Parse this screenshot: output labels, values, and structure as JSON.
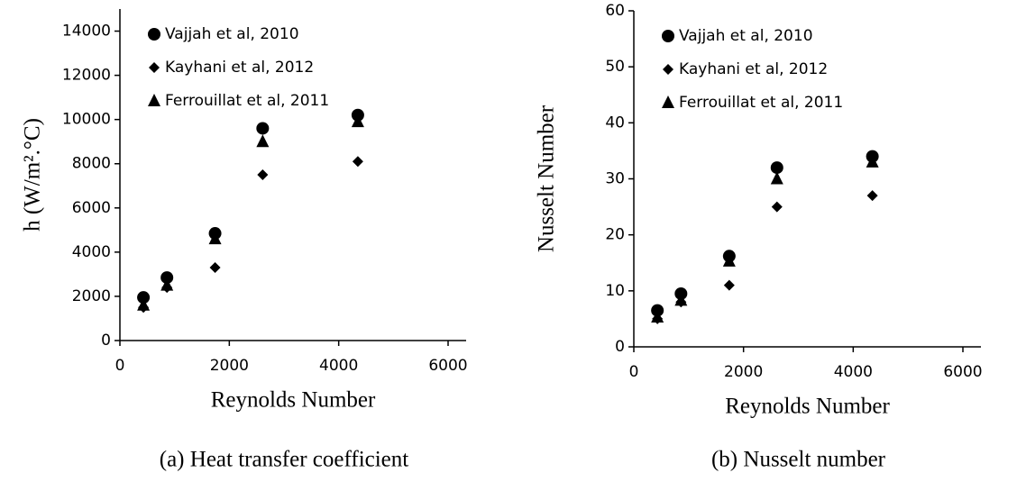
{
  "chart_data": [
    {
      "type": "scatter",
      "caption": "(a) Heat transfer coefficient",
      "x_label": "Reynolds Number",
      "y_label": "h (W/m².°C)",
      "xlim": [
        0,
        6000
      ],
      "xticks": [
        0,
        2000,
        4000,
        6000
      ],
      "ylim": [
        0,
        15000
      ],
      "yticks": [
        0,
        2000,
        4000,
        6000,
        8000,
        10000,
        12000,
        14000
      ],
      "legend": "upper left",
      "series": [
        {
          "name": "Vajjah et al, 2010",
          "marker": "circle",
          "color": "#000000",
          "x": [
            430,
            860,
            1740,
            2610,
            4350
          ],
          "values": [
            1950,
            2850,
            4850,
            9600,
            10200
          ]
        },
        {
          "name": "Kayhani et al, 2012",
          "marker": "diamond",
          "color": "#000000",
          "x": [
            430,
            860,
            1740,
            2610,
            4350
          ],
          "values": [
            1500,
            2400,
            3300,
            7500,
            8100
          ]
        },
        {
          "name": "Ferrouillat et al, 2011",
          "marker": "triangle",
          "color": "#000000",
          "x": [
            430,
            860,
            1740,
            2610,
            4350
          ],
          "values": [
            1600,
            2500,
            4600,
            9000,
            9900
          ]
        }
      ]
    },
    {
      "type": "scatter",
      "caption": "(b) Nusselt number",
      "x_label": "Reynolds Number",
      "y_label": "Nusselt Number",
      "xlim": [
        0,
        6000
      ],
      "xticks": [
        0,
        2000,
        4000,
        6000
      ],
      "ylim": [
        0,
        60
      ],
      "yticks": [
        0,
        10,
        20,
        30,
        40,
        50,
        60
      ],
      "legend": "upper left",
      "series": [
        {
          "name": "Vajjah et al, 2010",
          "marker": "circle",
          "color": "#000000",
          "x": [
            430,
            860,
            1740,
            2610,
            4350
          ],
          "values": [
            6.5,
            9.5,
            16.2,
            32,
            34
          ]
        },
        {
          "name": "Kayhani et al, 2012",
          "marker": "diamond",
          "color": "#000000",
          "x": [
            430,
            860,
            1740,
            2610,
            4350
          ],
          "values": [
            5,
            8,
            11,
            25,
            27
          ]
        },
        {
          "name": "Ferrouillat et al, 2011",
          "marker": "triangle",
          "color": "#000000",
          "x": [
            430,
            860,
            1740,
            2610,
            4350
          ],
          "values": [
            5.3,
            8.3,
            15.3,
            30,
            33
          ]
        }
      ]
    }
  ]
}
